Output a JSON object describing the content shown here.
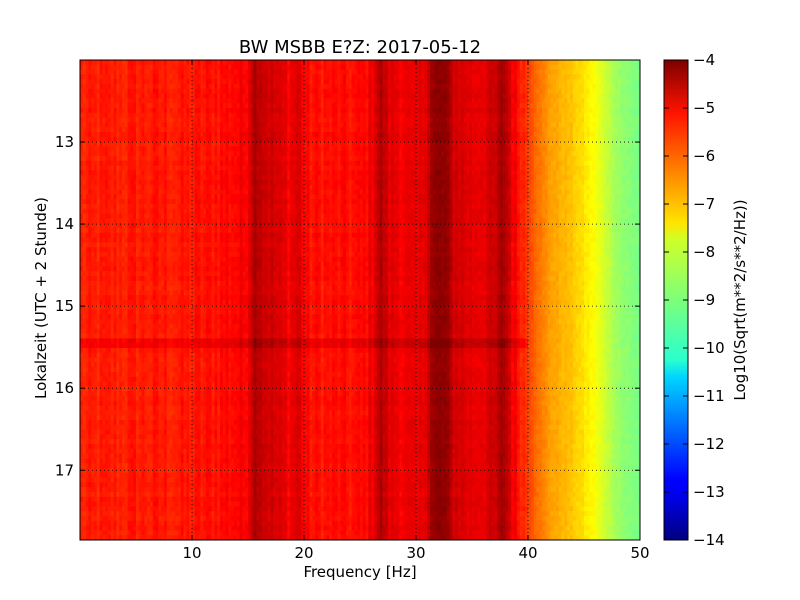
{
  "chart_data": {
    "type": "heatmap",
    "title": "BW MSBB E?Z: 2017-05-12",
    "xlabel": "Frequency [Hz]",
    "ylabel": "Lokalzeit (UTC + 2 Stunde)",
    "xlim": [
      0,
      50
    ],
    "ylim": [
      12,
      17.85
    ],
    "x_ticks": [
      10,
      20,
      30,
      40,
      50
    ],
    "x_tick_labels": [
      "10",
      "20",
      "30",
      "40",
      "50"
    ],
    "y_ticks": [
      13,
      14,
      15,
      16,
      17
    ],
    "y_tick_labels": [
      "13",
      "14",
      "15",
      "16",
      "17"
    ],
    "grid": true,
    "colormap": "jet",
    "colorbar": {
      "label": "Log10(Sqrt(m**2/s**2/Hz))",
      "range": [
        -14,
        -4
      ],
      "ticks": [
        -4,
        -5,
        -6,
        -7,
        -8,
        -9,
        -10,
        -11,
        -12,
        -13,
        -14
      ],
      "tick_labels": [
        "−4",
        "−5",
        "−6",
        "−7",
        "−8",
        "−9",
        "−10",
        "−11",
        "−12",
        "−13",
        "−14"
      ]
    },
    "frequency_profile": {
      "frequency_hz": [
        0,
        5,
        10,
        15,
        16,
        20,
        25,
        27,
        30,
        32,
        35,
        38,
        40,
        41,
        42,
        43,
        44,
        45,
        46,
        47,
        48,
        49,
        50
      ],
      "log10_asd": [
        -5.6,
        -5.5,
        -5.5,
        -5.2,
        -4.6,
        -5.4,
        -5.4,
        -4.9,
        -5.2,
        -4.5,
        -5.0,
        -4.8,
        -5.8,
        -6.4,
        -6.8,
        -7.0,
        -7.2,
        -7.5,
        -7.8,
        -8.3,
        -8.7,
        -8.9,
        -9.1
      ]
    },
    "spectral_lines_hz": [
      15.5,
      19.5,
      26.8,
      31.5,
      32.5,
      37.8
    ],
    "time_band_lines_h": [
      15.45
    ]
  }
}
